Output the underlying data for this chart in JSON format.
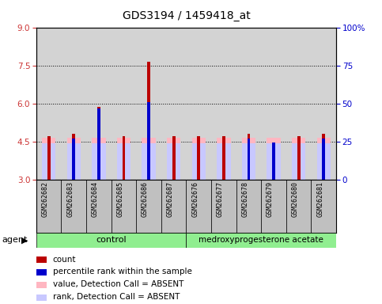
{
  "title": "GDS3194 / 1459418_at",
  "samples": [
    "GSM262682",
    "GSM262683",
    "GSM262684",
    "GSM262685",
    "GSM262686",
    "GSM262687",
    "GSM262676",
    "GSM262677",
    "GSM262678",
    "GSM262679",
    "GSM262680",
    "GSM262681"
  ],
  "red_bars": [
    4.7,
    4.8,
    5.85,
    4.7,
    7.65,
    4.7,
    4.7,
    4.7,
    4.8,
    4.4,
    4.7,
    4.8
  ],
  "blue_bars": [
    null,
    4.6,
    5.8,
    null,
    6.05,
    null,
    null,
    null,
    4.6,
    4.45,
    null,
    4.6
  ],
  "pink_bars": [
    4.65,
    4.65,
    4.65,
    4.65,
    4.65,
    4.65,
    4.65,
    4.65,
    4.65,
    4.65,
    4.65,
    4.65
  ],
  "lavender_bars": [
    4.42,
    4.42,
    4.42,
    4.42,
    4.42,
    4.42,
    4.42,
    4.42,
    4.42,
    4.42,
    4.42,
    4.42
  ],
  "ylim_left": [
    3,
    9
  ],
  "yticks_left": [
    3,
    4.5,
    6,
    7.5,
    9
  ],
  "ylim_right": [
    0,
    100
  ],
  "yticks_right": [
    0,
    25,
    50,
    75,
    100
  ],
  "yticklabels_right": [
    "0",
    "25",
    "50",
    "75",
    "100%"
  ],
  "bar_bottom": 3,
  "red_color": "#BB0000",
  "blue_color": "#0000CC",
  "pink_color": "#FFB6C1",
  "lavender_color": "#C8C8FF",
  "left_tick_color": "#CC3333",
  "right_tick_color": "#0000CC",
  "bg_plot": "#D3D3D3",
  "bg_labels": "#C0C0C0",
  "group_color": "#90EE90",
  "control_label": "control",
  "med_label": "medroxyprogesterone acetate",
  "agent_label": "agent",
  "legend_items": [
    {
      "color": "#BB0000",
      "label": "count"
    },
    {
      "color": "#0000CC",
      "label": "percentile rank within the sample"
    },
    {
      "color": "#FFB6C1",
      "label": "value, Detection Call = ABSENT"
    },
    {
      "color": "#C8C8FF",
      "label": "rank, Detection Call = ABSENT"
    }
  ]
}
